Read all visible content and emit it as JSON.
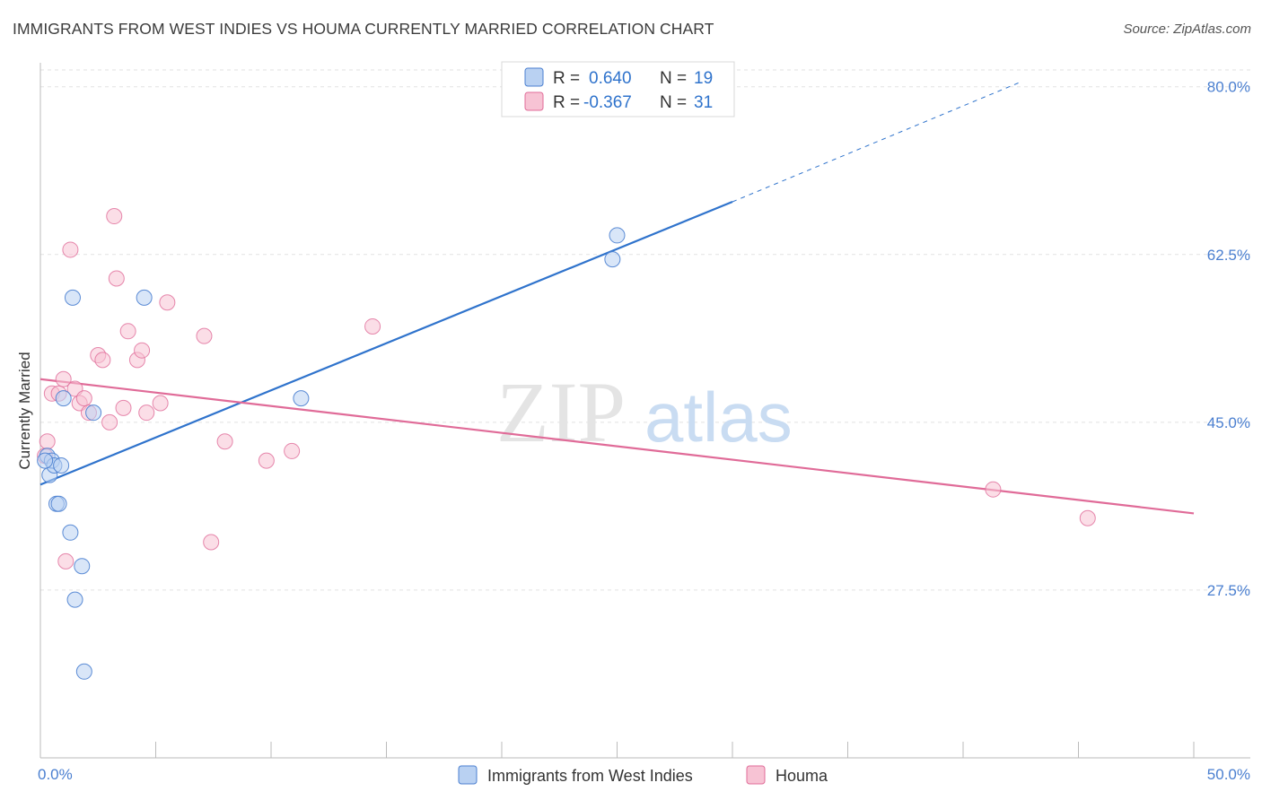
{
  "header": {
    "title": "IMMIGRANTS FROM WEST INDIES VS HOUMA CURRENTLY MARRIED CORRELATION CHART",
    "source": "Source: ZipAtlas.com"
  },
  "watermark": {
    "part1": "ZIP",
    "part2": "atlas"
  },
  "colors": {
    "blue": "#4a7fd0",
    "blue_line": "#2f73cc",
    "blue_fill": "#b9d1f2",
    "pink_line": "#e06b98",
    "pink_fill": "#f7c3d4",
    "grid": "#e2e2e2",
    "text_value": "#2f73cc"
  },
  "legend_top": [
    {
      "r_label": "R =",
      "r_value": "0.640",
      "n_label": "N =",
      "n_value": "19"
    },
    {
      "r_label": "R =",
      "r_value": "-0.367",
      "n_label": "N =",
      "n_value": "31"
    }
  ],
  "legend_bottom": [
    {
      "label": "Immigrants from West Indies"
    },
    {
      "label": "Houma"
    }
  ],
  "chart_data": {
    "type": "scatter",
    "title": "IMMIGRANTS FROM WEST INDIES VS HOUMA CURRENTLY MARRIED CORRELATION CHART",
    "xlabel": "",
    "ylabel": "Currently Married",
    "xlim": [
      0,
      50
    ],
    "ylim": [
      10,
      82.5
    ],
    "x_tick_labels": [
      "0.0%",
      "50.0%"
    ],
    "y_ticks": [
      27.5,
      45.0,
      62.5,
      80.0
    ],
    "y_tick_labels": [
      "27.5%",
      "45.0%",
      "62.5%",
      "80.0%"
    ],
    "grid": true,
    "legend_position": "top-center",
    "series": [
      {
        "name": "Immigrants from West Indies",
        "color": "#4a7fd0",
        "points": [
          [
            0.3,
            41.5
          ],
          [
            0.4,
            39.5
          ],
          [
            0.5,
            41.0
          ],
          [
            0.6,
            40.5
          ],
          [
            0.7,
            36.5
          ],
          [
            0.8,
            36.5
          ],
          [
            0.9,
            40.5
          ],
          [
            1.0,
            47.5
          ],
          [
            1.3,
            33.5
          ],
          [
            1.4,
            58.0
          ],
          [
            1.5,
            26.5
          ],
          [
            1.8,
            30.0
          ],
          [
            1.9,
            19.0
          ],
          [
            2.3,
            46.0
          ],
          [
            4.5,
            58.0
          ],
          [
            11.3,
            47.5
          ],
          [
            24.8,
            62.0
          ],
          [
            25.0,
            64.5
          ],
          [
            0.2,
            41.0
          ]
        ],
        "trend": {
          "x0": 0.0,
          "y0": 38.5,
          "x1": 30.0,
          "y1": 68.0,
          "dash_x1": 42.5,
          "dash_y1": 80.5
        }
      },
      {
        "name": "Houma",
        "color": "#e06b98",
        "points": [
          [
            0.2,
            41.5
          ],
          [
            0.3,
            43.0
          ],
          [
            0.5,
            48.0
          ],
          [
            0.8,
            48.0
          ],
          [
            1.0,
            49.5
          ],
          [
            1.1,
            30.5
          ],
          [
            1.3,
            63.0
          ],
          [
            1.5,
            48.5
          ],
          [
            1.7,
            47.0
          ],
          [
            1.9,
            47.5
          ],
          [
            2.1,
            46.0
          ],
          [
            2.5,
            52.0
          ],
          [
            2.7,
            51.5
          ],
          [
            3.0,
            45.0
          ],
          [
            3.2,
            66.5
          ],
          [
            3.3,
            60.0
          ],
          [
            3.6,
            46.5
          ],
          [
            3.8,
            54.5
          ],
          [
            4.2,
            51.5
          ],
          [
            4.4,
            52.5
          ],
          [
            4.6,
            46.0
          ],
          [
            5.2,
            47.0
          ],
          [
            5.5,
            57.5
          ],
          [
            7.1,
            54.0
          ],
          [
            7.4,
            32.5
          ],
          [
            8.0,
            43.0
          ],
          [
            9.8,
            41.0
          ],
          [
            10.9,
            42.0
          ],
          [
            14.4,
            55.0
          ],
          [
            41.3,
            38.0
          ],
          [
            45.4,
            35.0
          ]
        ],
        "trend": {
          "x0": 0.0,
          "y0": 49.5,
          "x1": 50.0,
          "y1": 35.5
        }
      }
    ]
  }
}
